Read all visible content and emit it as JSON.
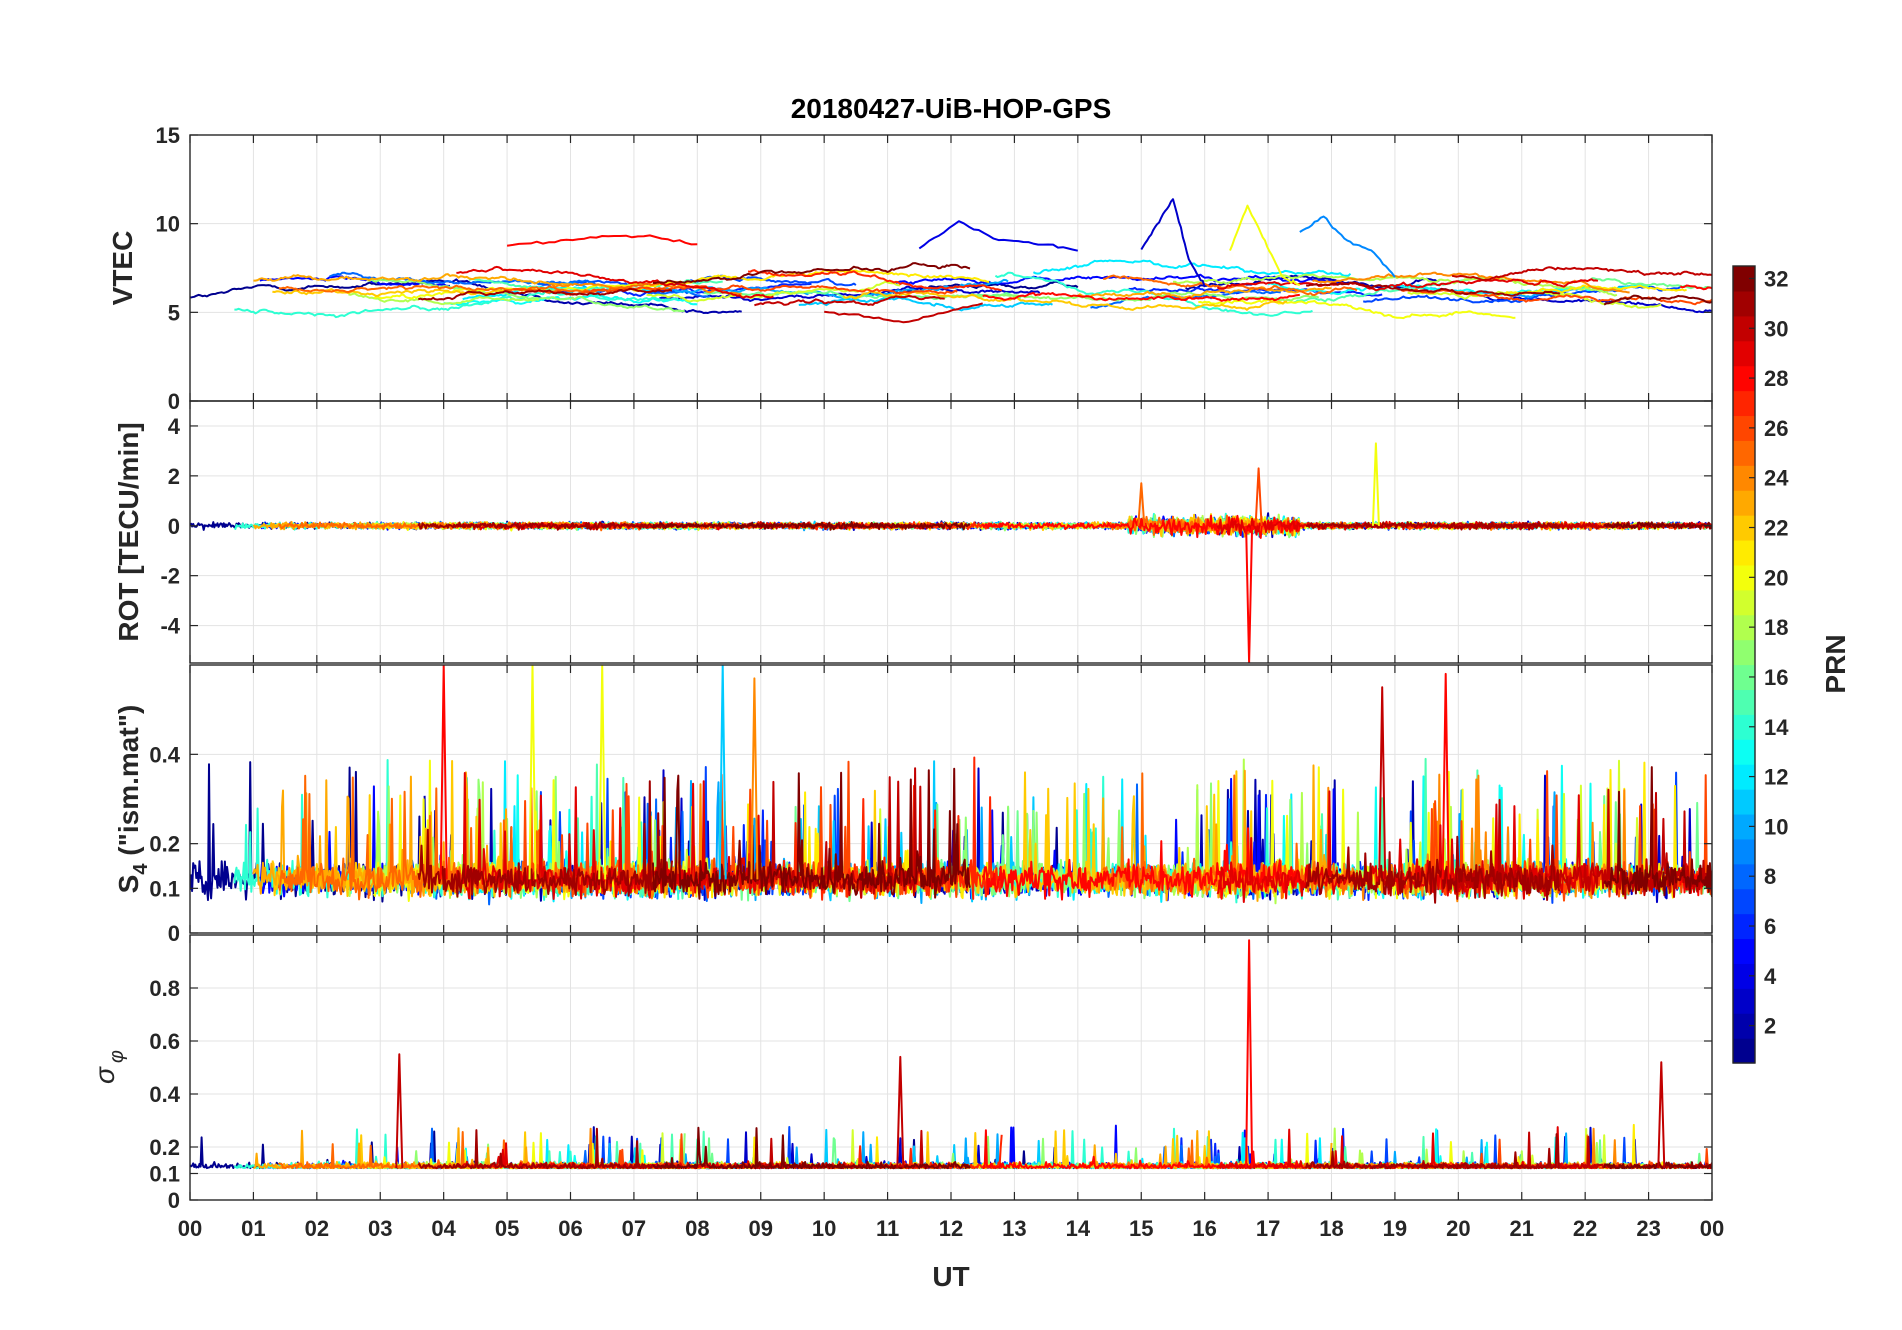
{
  "chart_data": {
    "title": "20180427-UiB-HOP-GPS",
    "type": "line",
    "xlabel": "UT",
    "x_ticks": [
      "00",
      "01",
      "02",
      "03",
      "04",
      "05",
      "06",
      "07",
      "08",
      "09",
      "10",
      "11",
      "12",
      "13",
      "14",
      "15",
      "16",
      "17",
      "18",
      "19",
      "20",
      "21",
      "22",
      "23",
      "00"
    ],
    "x_range_hours": [
      0,
      24
    ],
    "colorbar": {
      "label": "PRN",
      "range": [
        1,
        32
      ],
      "ticks": [
        "32",
        "30",
        "28",
        "26",
        "24",
        "22",
        "20",
        "18",
        "16",
        "14",
        "12",
        "10",
        "8",
        "6",
        "4",
        "2"
      ],
      "colormap": [
        "#00008f",
        "#0000ff",
        "#0080ff",
        "#00ffff",
        "#80ff80",
        "#ffff00",
        "#ff8000",
        "#ff0000",
        "#800000"
      ]
    },
    "panels": [
      {
        "name": "vtec",
        "ylabel": "VTEC",
        "ylim": [
          0,
          15
        ],
        "y_ticks": [
          "15",
          "10",
          "5",
          "0"
        ],
        "baseline": 6.3,
        "spread": 1.2,
        "noise": 0.15,
        "sample_tracks": [
          {
            "prn": 28,
            "hours": [
              5.0,
              8.0
            ],
            "values": [
              8.8,
              9.0,
              9.3,
              9.3,
              8.8
            ]
          },
          {
            "prn": 4,
            "hours": [
              11.5,
              14.0
            ],
            "values": [
              8.6,
              10.1,
              9.1,
              8.9,
              8.5
            ]
          },
          {
            "prn": 3,
            "hours": [
              15.0,
              16.0
            ],
            "values": [
              8.5,
              10.0,
              11.4,
              8.0,
              6.5
            ]
          },
          {
            "prn": 20,
            "hours": [
              16.4,
              17.5
            ],
            "values": [
              8.5,
              11.0,
              9.0,
              7.0,
              6.5
            ]
          },
          {
            "prn": 9,
            "hours": [
              17.5,
              19.0
            ],
            "values": [
              9.5,
              10.4,
              9.0,
              8.5,
              7.0
            ]
          },
          {
            "prn": 30,
            "hours": [
              10.0,
              12.5
            ],
            "values": [
              5.0,
              4.8,
              4.4,
              5.0,
              5.5
            ]
          }
        ]
      },
      {
        "name": "rot",
        "ylabel": "ROT [TECU/min]",
        "ylim": [
          -5.5,
          5
        ],
        "y_ticks": [
          "4",
          "2",
          "0",
          "-2",
          "-4"
        ],
        "baseline": 0,
        "spread": 0.1,
        "noise": 0.2,
        "events": [
          {
            "prn": 28,
            "hour": 16.7,
            "value": -5.5
          },
          {
            "prn": 26,
            "hour": 16.85,
            "value": 2.3
          },
          {
            "prn": 20,
            "hour": 18.7,
            "value": 3.3
          },
          {
            "prn": 25,
            "hour": 15.0,
            "value": 1.7
          }
        ]
      },
      {
        "name": "s4",
        "ylabel": "S4 (\"ism.mat\")",
        "ylabel_main": "S",
        "ylabel_sub": "4",
        "ylabel_rest": " (\"ism.mat\")",
        "ylim": [
          0,
          0.6
        ],
        "y_ticks": [
          "0.4",
          "0.2",
          "0.1",
          "0"
        ],
        "baseline": 0.12,
        "spread": 0.05,
        "noise": 0.05,
        "events": [
          {
            "prn": 28,
            "hour": 4.0,
            "value": 0.6
          },
          {
            "prn": 20,
            "hour": 5.4,
            "value": 0.6
          },
          {
            "prn": 20,
            "hour": 6.5,
            "value": 0.6
          },
          {
            "prn": 11,
            "hour": 8.4,
            "value": 0.6
          },
          {
            "prn": 24,
            "hour": 8.9,
            "value": 0.57
          },
          {
            "prn": 30,
            "hour": 18.8,
            "value": 0.55
          },
          {
            "prn": 28,
            "hour": 19.8,
            "value": 0.58
          }
        ]
      },
      {
        "name": "sigma_phi",
        "ylabel": "σφ",
        "ylabel_main": "σ",
        "ylabel_sub": "φ",
        "ylim": [
          0,
          1
        ],
        "y_ticks": [
          "0.8",
          "0.6",
          "0.4",
          "0.2",
          "0.1",
          "0"
        ],
        "baseline": 0.12,
        "spread": 0.015,
        "noise": 0.03,
        "events": [
          {
            "prn": 28,
            "hour": 16.7,
            "value": 0.98
          },
          {
            "prn": 30,
            "hour": 3.3,
            "value": 0.55
          },
          {
            "prn": 30,
            "hour": 11.2,
            "value": 0.54
          },
          {
            "prn": 30,
            "hour": 23.2,
            "value": 0.52
          }
        ]
      }
    ]
  }
}
